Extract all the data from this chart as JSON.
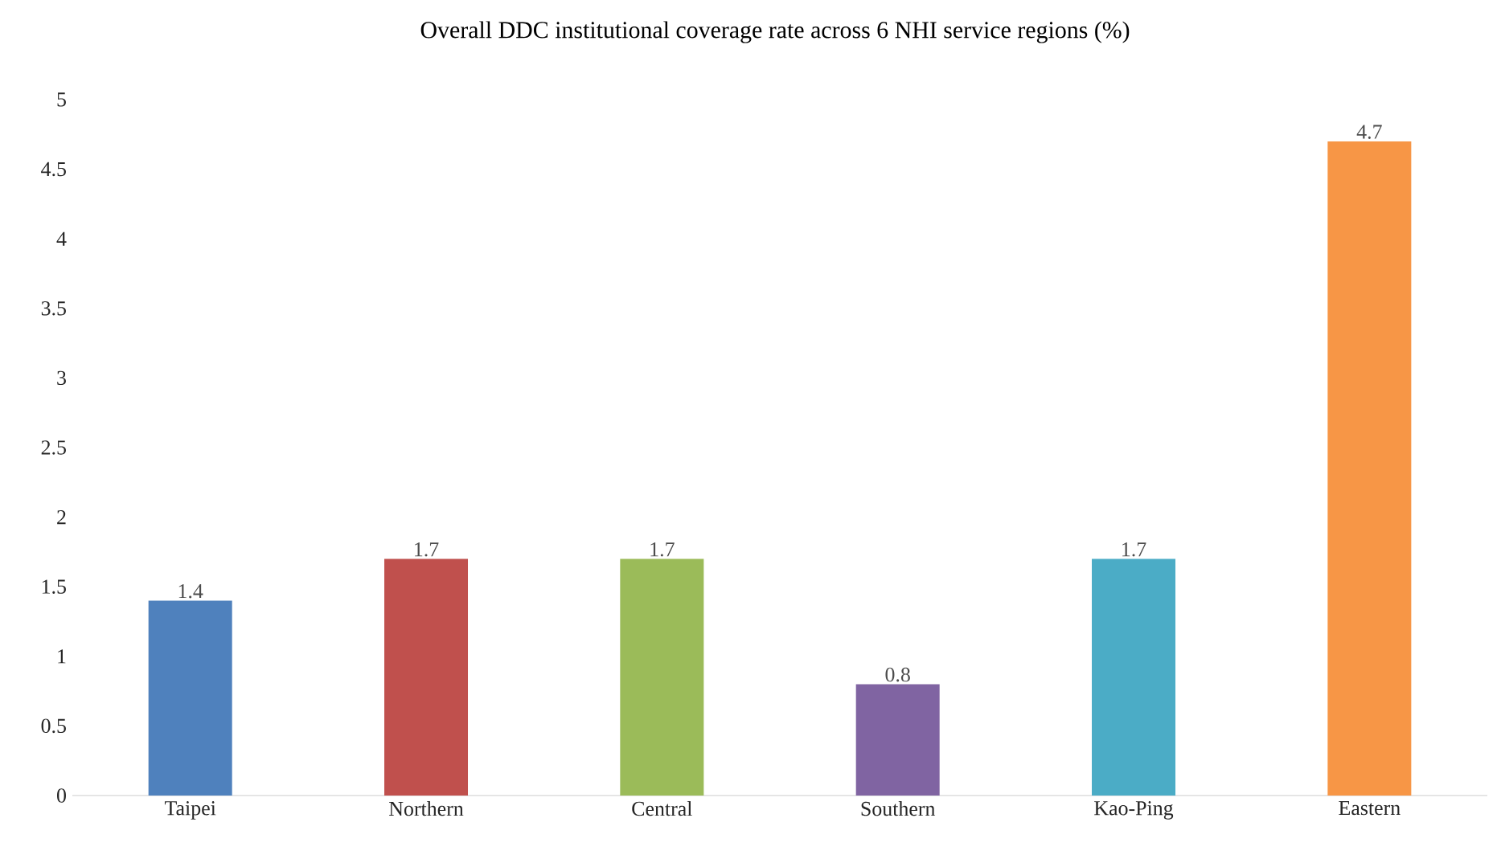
{
  "chart_data": {
    "type": "bar",
    "title": "Overall DDC institutional coverage rate across 6 NHI service regions (%)",
    "categories": [
      "Taipei",
      "Northern",
      "Central",
      "Southern",
      "Kao-Ping",
      "Eastern"
    ],
    "values": [
      1.4,
      1.7,
      1.7,
      0.8,
      1.7,
      4.7
    ],
    "colors": [
      "#4f81bd",
      "#c0504d",
      "#9bbb59",
      "#8064a2",
      "#4bacc6",
      "#f79646"
    ],
    "ylim": [
      0,
      5
    ],
    "yticks": [
      0,
      0.5,
      1,
      1.5,
      2,
      2.5,
      3,
      3.5,
      4,
      4.5,
      5
    ],
    "data_labels": true
  }
}
